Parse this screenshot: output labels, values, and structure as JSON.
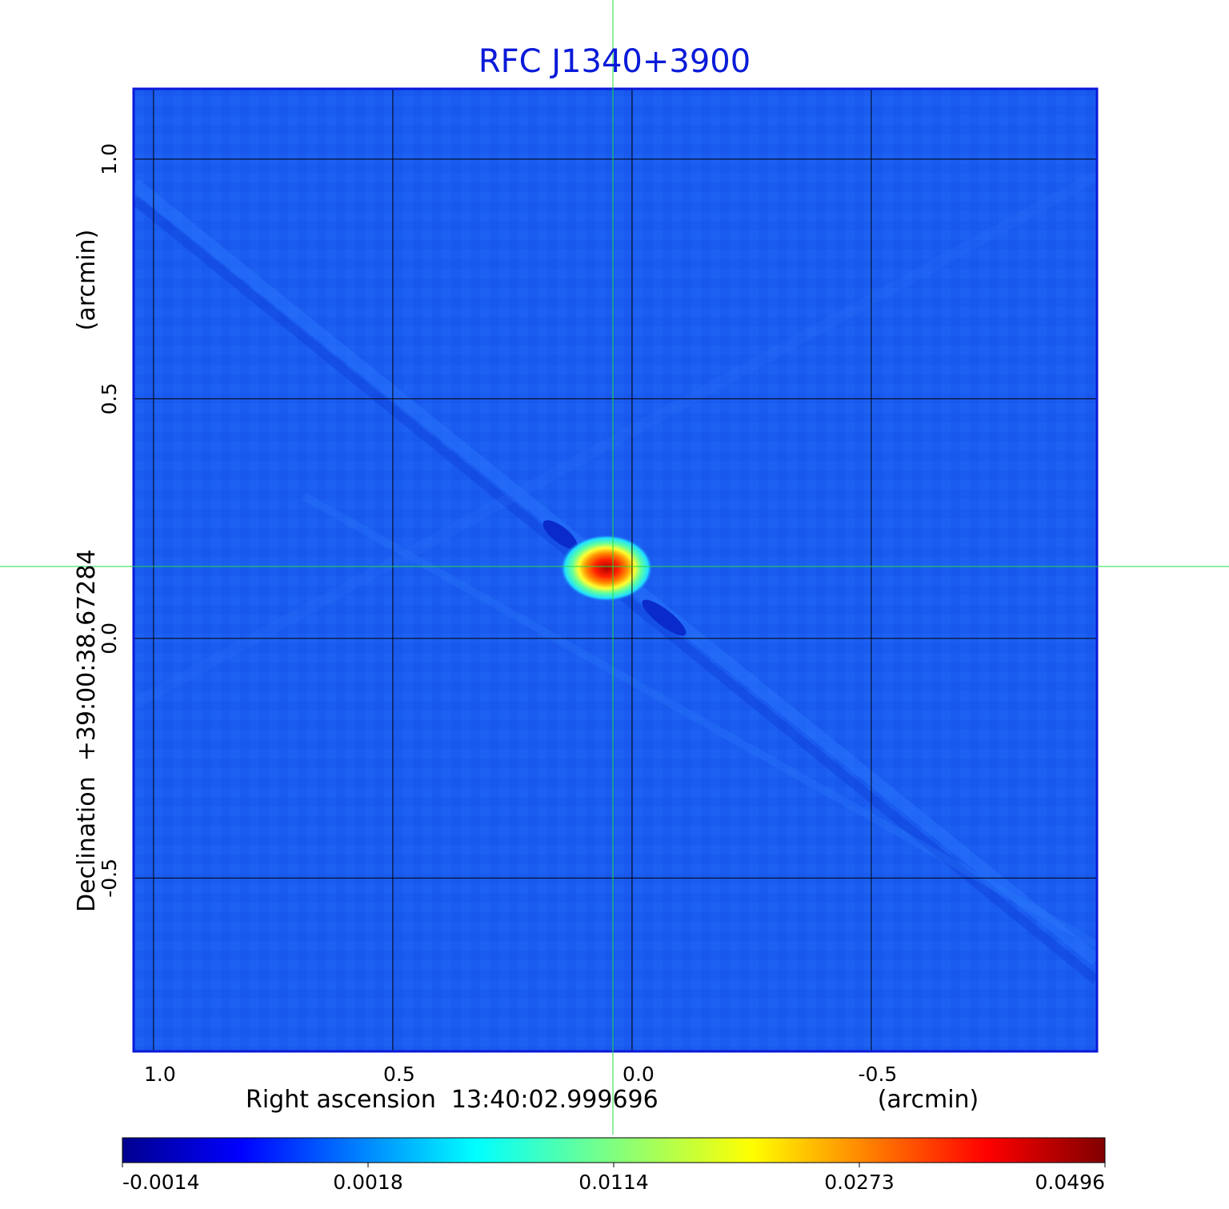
{
  "chart_data": {
    "type": "heatmap",
    "title": "RFC J1340+3900",
    "xlabel": "Right ascension  13:40:02.999696",
    "xunit": "(arcmin)",
    "ylabel": "Declination  +39:00:38.67284",
    "yunit": "(arcmin)",
    "x_ticks": [
      "1.0",
      "0.5",
      "0.0",
      "-0.5"
    ],
    "x_tick_values": [
      1.0,
      0.5,
      0.0,
      -0.5
    ],
    "y_ticks": [
      "1.0",
      "0.5",
      "0.0",
      "-0.5"
    ],
    "y_tick_values": [
      1.0,
      0.5,
      0.0,
      -0.5
    ],
    "xlim": [
      1.04,
      -0.97
    ],
    "ylim": [
      -0.86,
      1.145
    ],
    "grid": true,
    "crosshair": {
      "x": 0.04,
      "y": 0.15,
      "color": "#22dd44"
    },
    "peak": {
      "x": 0.04,
      "y": 0.145,
      "value": 0.0496
    },
    "colormap": "jet",
    "colorbar": {
      "tick_labels": [
        "-0.0014",
        "0.0018",
        "0.0114",
        "0.0273",
        "0.0496"
      ],
      "min": -0.0014,
      "max": 0.0496
    }
  },
  "colors": {
    "title": "#0a1ad8",
    "frame": "#0a1ad8",
    "background_map": "#1a5cf0",
    "grid": "#000000",
    "crosshair": "#22dd44"
  }
}
